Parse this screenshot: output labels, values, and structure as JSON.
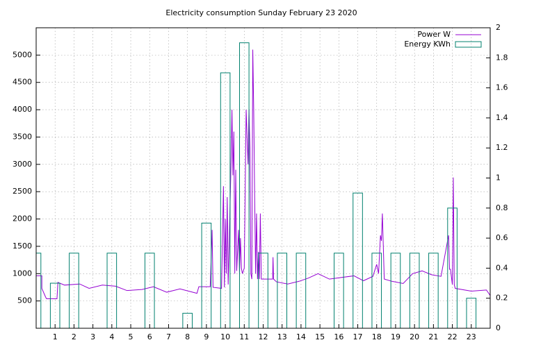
{
  "chart_data": {
    "type": "line",
    "title": "Electricity consumption Sunday February 23 2020",
    "xlim": [
      0,
      24
    ],
    "xticks": [
      1,
      2,
      3,
      4,
      5,
      6,
      7,
      8,
      9,
      10,
      11,
      12,
      13,
      14,
      15,
      16,
      17,
      18,
      19,
      20,
      21,
      22,
      23
    ],
    "ylim": [
      0,
      5500
    ],
    "yticks": [
      500,
      1000,
      1500,
      2000,
      2500,
      3000,
      3500,
      4000,
      4500,
      5000
    ],
    "y2lim": [
      0,
      2
    ],
    "y2ticks": [
      0,
      0.2,
      0.4,
      0.6,
      0.8,
      1,
      1.2,
      1.4,
      1.6,
      1.8,
      2
    ],
    "grid": true,
    "legend": "top-right",
    "series": [
      {
        "name": "Power W",
        "color": "#9400d3",
        "type": "line",
        "x": [
          0,
          0.3,
          0.3,
          0.5,
          0.55,
          1.1,
          1.15,
          1.5,
          2.3,
          2.8,
          3.5,
          4.2,
          4.8,
          5.6,
          6.2,
          6.9,
          7.6,
          8.5,
          8.6,
          9.2,
          9.3,
          9.35,
          9.8,
          9.9,
          9.95,
          10.0,
          10.05,
          10.1,
          10.15,
          10.2,
          10.3,
          10.35,
          10.4,
          10.45,
          10.5,
          10.55,
          10.6,
          10.7,
          10.75,
          10.8,
          10.85,
          10.9,
          11.0,
          11.1,
          11.2,
          11.25,
          11.3,
          11.35,
          11.4,
          11.45,
          11.5,
          11.55,
          11.6,
          11.65,
          11.7,
          11.75,
          11.8,
          11.85,
          11.9,
          12.5,
          12.52,
          12.55,
          12.7,
          13.3,
          13.9,
          14.4,
          14.9,
          15.5,
          16.8,
          17.3,
          17.8,
          18.0,
          18.1,
          18.2,
          18.25,
          18.3,
          18.4,
          18.8,
          19.4,
          19.9,
          20.4,
          20.9,
          21.4,
          21.8,
          21.85,
          21.9,
          22.0,
          22.05,
          22.1,
          22.15,
          23.0,
          23.8,
          24.0
        ],
        "values": [
          960,
          960,
          730,
          570,
          540,
          540,
          840,
          790,
          810,
          730,
          790,
          770,
          690,
          710,
          760,
          660,
          720,
          640,
          760,
          760,
          1800,
          750,
          730,
          2600,
          750,
          2000,
          1000,
          2400,
          800,
          1500,
          3000,
          4000,
          2800,
          3600,
          1000,
          2900,
          1050,
          1800,
          1000,
          1650,
          1100,
          1000,
          1100,
          4000,
          3000,
          4000,
          3300,
          1000,
          900,
          5100,
          4000,
          2400,
          1000,
          2100,
          900,
          1400,
          900,
          2100,
          900,
          900,
          1300,
          900,
          850,
          810,
          860,
          920,
          1000,
          900,
          960,
          870,
          950,
          1170,
          1000,
          1700,
          1600,
          2100,
          900,
          860,
          820,
          1000,
          1050,
          980,
          950,
          1700,
          1080,
          1080,
          800,
          2760,
          800,
          730,
          680,
          700,
          600
        ]
      },
      {
        "name": "Energy KWh",
        "color": "#00806e",
        "type": "box",
        "axis": "y2",
        "x": [
          0,
          1,
          2,
          3,
          4,
          5,
          6,
          7,
          8,
          9,
          10,
          11,
          12,
          13,
          14,
          15,
          16,
          17,
          18,
          19,
          20,
          21,
          22,
          23
        ],
        "values": [
          0.5,
          0.3,
          0.5,
          0,
          0.5,
          0,
          0.5,
          0,
          0.1,
          0.7,
          1.7,
          1.9,
          0.5,
          0.5,
          0.5,
          0,
          0.5,
          0.9,
          0.5,
          0.5,
          0.5,
          0.5,
          0.8,
          0.2
        ]
      }
    ]
  }
}
